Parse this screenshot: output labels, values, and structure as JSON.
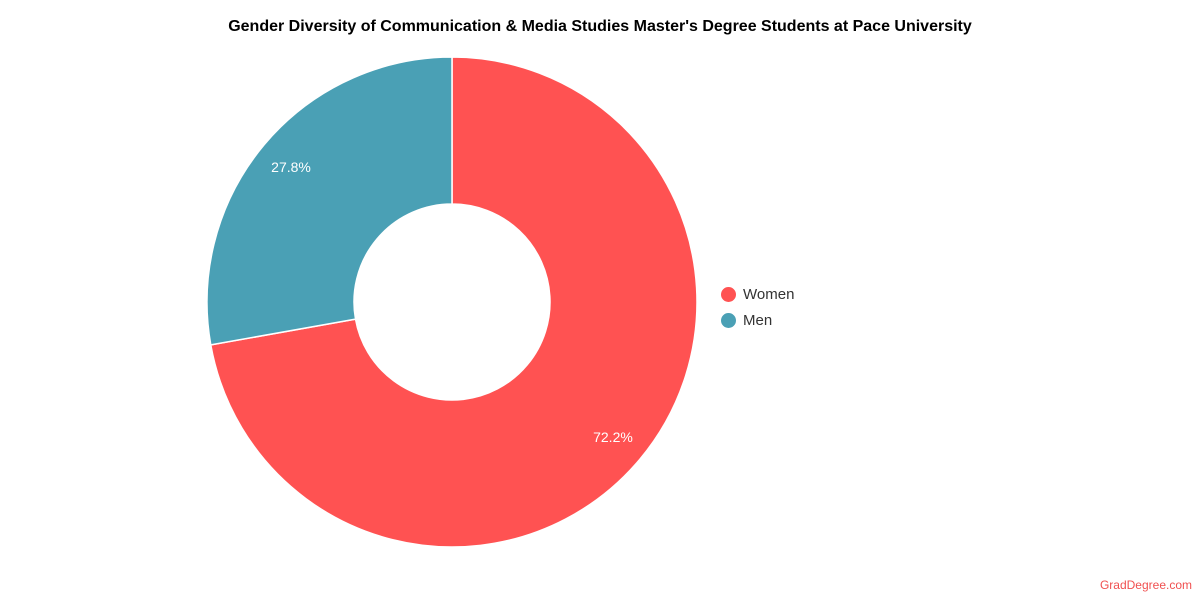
{
  "chart_data": {
    "type": "pie",
    "variant": "donut",
    "title": "Gender Diversity of Communication & Media Studies Master's Degree Students at Pace University",
    "categories": [
      "Women",
      "Men"
    ],
    "values": [
      72.2,
      27.8
    ],
    "labels": [
      "72.2%",
      "27.8%"
    ],
    "colors": [
      "#FF5252",
      "#4AA0B5"
    ],
    "legend": "right"
  },
  "credit": "GradDegree.com"
}
